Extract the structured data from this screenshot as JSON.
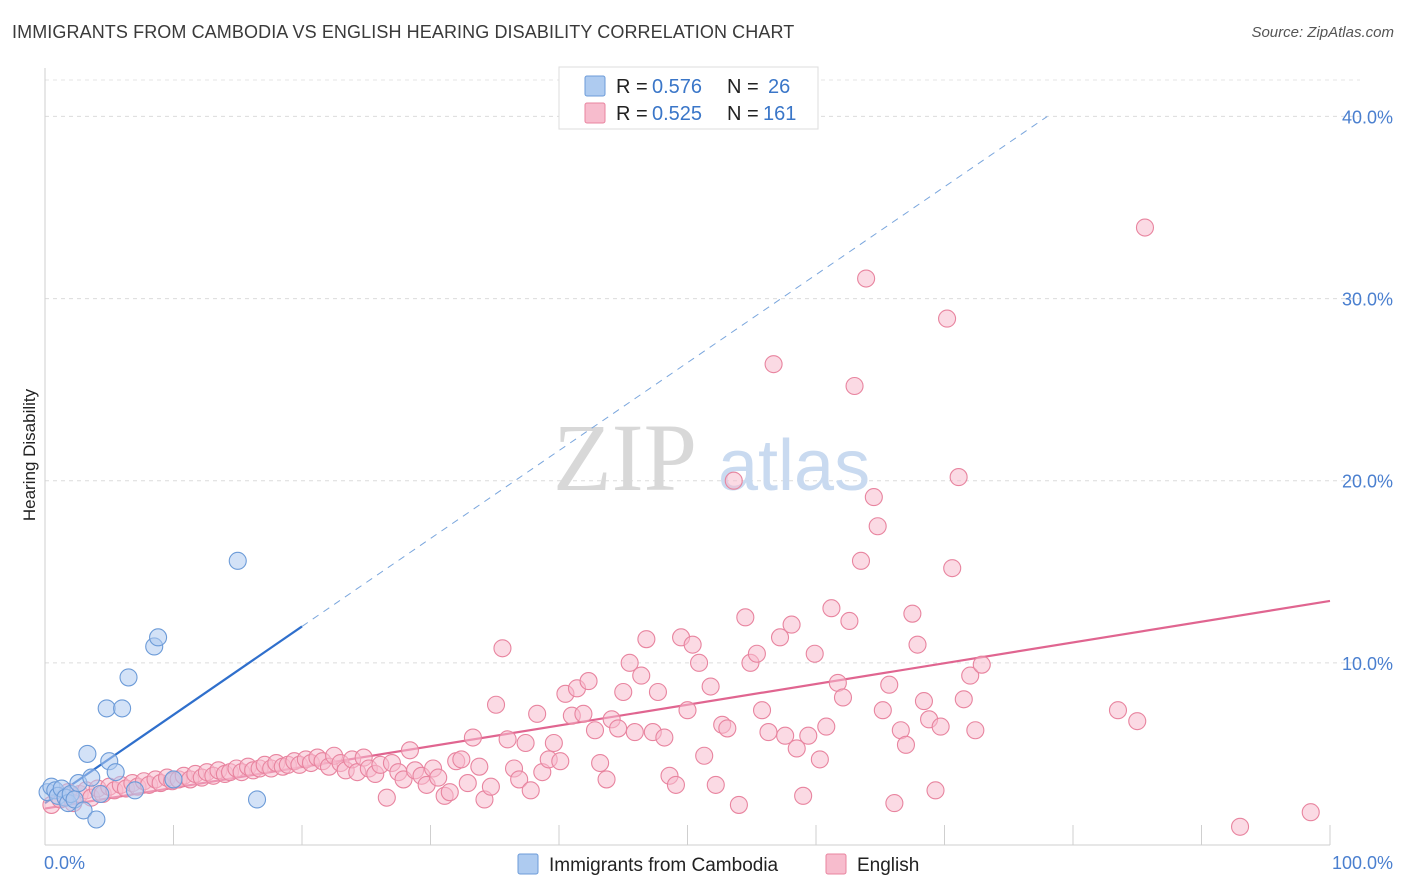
{
  "title": "IMMIGRANTS FROM CAMBODIA VS ENGLISH HEARING DISABILITY CORRELATION CHART",
  "source": "Source: ZipAtlas.com",
  "watermark": {
    "zip": "ZIP",
    "atlas": "atlas"
  },
  "legend": {
    "rows": [
      {
        "r_label": "R =",
        "r_value": "0.576",
        "n_label": "N =",
        "n_value": "26",
        "color": "#aecbf0"
      },
      {
        "r_label": "R =",
        "r_value": "0.525",
        "n_label": "N =",
        "n_value": "161",
        "color": "#f7bccd"
      }
    ]
  },
  "bottom_legend": [
    {
      "label": "Immigrants from Cambodia",
      "color": "#aecbf0"
    },
    {
      "label": "English",
      "color": "#f7bccd"
    }
  ],
  "chart_data": {
    "type": "scatter",
    "title": "IMMIGRANTS FROM CAMBODIA VS ENGLISH HEARING DISABILITY CORRELATION CHART",
    "xlabel": "",
    "ylabel": "Hearing Disability",
    "xlim": [
      0,
      100
    ],
    "ylim": [
      0,
      42
    ],
    "x_ticks": [
      "0.0%",
      "100.0%"
    ],
    "y_ticks": [
      {
        "value": 10,
        "label": "10.0%"
      },
      {
        "value": 20,
        "label": "20.0%"
      },
      {
        "value": 30,
        "label": "30.0%"
      },
      {
        "value": 40,
        "label": "40.0%"
      }
    ],
    "grid": true,
    "legend_position": "top-center",
    "series": [
      {
        "name": "Immigrants from Cambodia",
        "color": "#aecbf0",
        "stroke": "#6c9bd8",
        "trend": {
          "x0": 0,
          "y0": 2.3,
          "x1": 20,
          "y1": 12.0,
          "dashed_to_x": 78,
          "dashed_to_y": 40.0,
          "color": "#2f6fcc"
        },
        "points": [
          [
            0.2,
            2.9
          ],
          [
            0.5,
            3.2
          ],
          [
            0.8,
            3.0
          ],
          [
            1.0,
            2.7
          ],
          [
            1.3,
            3.1
          ],
          [
            1.6,
            2.6
          ],
          [
            1.8,
            2.3
          ],
          [
            2.0,
            2.8
          ],
          [
            2.3,
            2.5
          ],
          [
            2.6,
            3.4
          ],
          [
            3.0,
            1.9
          ],
          [
            3.3,
            5.0
          ],
          [
            3.6,
            3.7
          ],
          [
            4.0,
            1.4
          ],
          [
            4.3,
            2.8
          ],
          [
            4.8,
            7.5
          ],
          [
            5.0,
            4.6
          ],
          [
            5.5,
            4.0
          ],
          [
            6.0,
            7.5
          ],
          [
            6.5,
            9.2
          ],
          [
            7.0,
            3.0
          ],
          [
            8.5,
            10.9
          ],
          [
            8.8,
            11.4
          ],
          [
            10.0,
            3.6
          ],
          [
            15.0,
            15.6
          ],
          [
            16.5,
            2.5
          ]
        ]
      },
      {
        "name": "English",
        "color": "#f7bccd",
        "stroke": "#e8849f",
        "trend": {
          "x0": 0,
          "y0": 2.0,
          "x1": 100,
          "y1": 13.4,
          "color": "#e06590"
        },
        "points": [
          [
            0.5,
            2.2
          ],
          [
            1.2,
            2.5
          ],
          [
            1.8,
            2.9
          ],
          [
            2.2,
            2.3
          ],
          [
            2.7,
            2.8
          ],
          [
            3.2,
            3.0
          ],
          [
            3.6,
            2.6
          ],
          [
            4.1,
            3.1
          ],
          [
            4.5,
            2.8
          ],
          [
            5.0,
            3.2
          ],
          [
            5.4,
            3.0
          ],
          [
            5.9,
            3.3
          ],
          [
            6.3,
            3.1
          ],
          [
            6.8,
            3.4
          ],
          [
            7.2,
            3.2
          ],
          [
            7.7,
            3.5
          ],
          [
            8.1,
            3.3
          ],
          [
            8.6,
            3.6
          ],
          [
            9.0,
            3.4
          ],
          [
            9.5,
            3.7
          ],
          [
            9.9,
            3.5
          ],
          [
            10.4,
            3.6
          ],
          [
            10.8,
            3.8
          ],
          [
            11.3,
            3.6
          ],
          [
            11.7,
            3.9
          ],
          [
            12.2,
            3.7
          ],
          [
            12.6,
            4.0
          ],
          [
            13.1,
            3.8
          ],
          [
            13.5,
            4.1
          ],
          [
            14.0,
            3.9
          ],
          [
            14.4,
            4.0
          ],
          [
            14.9,
            4.2
          ],
          [
            15.3,
            4.0
          ],
          [
            15.8,
            4.3
          ],
          [
            16.2,
            4.1
          ],
          [
            16.7,
            4.2
          ],
          [
            17.1,
            4.4
          ],
          [
            17.6,
            4.2
          ],
          [
            18.0,
            4.5
          ],
          [
            18.5,
            4.3
          ],
          [
            18.9,
            4.4
          ],
          [
            19.4,
            4.6
          ],
          [
            19.8,
            4.4
          ],
          [
            20.3,
            4.7
          ],
          [
            20.7,
            4.5
          ],
          [
            21.2,
            4.8
          ],
          [
            21.6,
            4.6
          ],
          [
            22.1,
            4.3
          ],
          [
            22.5,
            4.9
          ],
          [
            23.0,
            4.5
          ],
          [
            23.4,
            4.1
          ],
          [
            23.9,
            4.7
          ],
          [
            24.3,
            4.0
          ],
          [
            24.8,
            4.8
          ],
          [
            25.2,
            4.2
          ],
          [
            25.7,
            3.9
          ],
          [
            26.1,
            4.4
          ],
          [
            26.6,
            2.6
          ],
          [
            27.0,
            4.5
          ],
          [
            27.5,
            4.0
          ],
          [
            27.9,
            3.6
          ],
          [
            28.4,
            5.2
          ],
          [
            28.8,
            4.1
          ],
          [
            29.3,
            3.8
          ],
          [
            29.7,
            3.3
          ],
          [
            30.2,
            4.2
          ],
          [
            30.6,
            3.7
          ],
          [
            31.1,
            2.7
          ],
          [
            31.5,
            2.9
          ],
          [
            32.0,
            4.6
          ],
          [
            32.4,
            4.7
          ],
          [
            32.9,
            3.4
          ],
          [
            33.3,
            5.9
          ],
          [
            33.8,
            4.3
          ],
          [
            34.2,
            2.5
          ],
          [
            34.7,
            3.2
          ],
          [
            35.1,
            7.7
          ],
          [
            35.6,
            10.8
          ],
          [
            36.0,
            5.8
          ],
          [
            36.5,
            4.2
          ],
          [
            36.9,
            3.6
          ],
          [
            37.4,
            5.6
          ],
          [
            37.8,
            3.0
          ],
          [
            38.3,
            7.2
          ],
          [
            38.7,
            4.0
          ],
          [
            39.2,
            4.7
          ],
          [
            39.6,
            5.6
          ],
          [
            40.1,
            4.6
          ],
          [
            40.5,
            8.3
          ],
          [
            41.0,
            7.1
          ],
          [
            41.4,
            8.6
          ],
          [
            41.9,
            7.2
          ],
          [
            42.3,
            9.0
          ],
          [
            42.8,
            6.3
          ],
          [
            43.2,
            4.5
          ],
          [
            43.7,
            3.6
          ],
          [
            44.1,
            6.9
          ],
          [
            44.6,
            6.4
          ],
          [
            45.0,
            8.4
          ],
          [
            45.5,
            10.0
          ],
          [
            45.9,
            6.2
          ],
          [
            46.4,
            9.3
          ],
          [
            46.8,
            11.3
          ],
          [
            47.3,
            6.2
          ],
          [
            47.7,
            8.4
          ],
          [
            48.2,
            5.9
          ],
          [
            48.6,
            3.8
          ],
          [
            49.1,
            3.3
          ],
          [
            49.5,
            11.4
          ],
          [
            50.0,
            7.4
          ],
          [
            50.4,
            11.0
          ],
          [
            50.9,
            10.0
          ],
          [
            51.3,
            4.9
          ],
          [
            51.8,
            8.7
          ],
          [
            52.2,
            3.3
          ],
          [
            52.7,
            6.6
          ],
          [
            53.1,
            6.4
          ],
          [
            53.6,
            20.0
          ],
          [
            54.0,
            2.2
          ],
          [
            54.5,
            12.5
          ],
          [
            54.9,
            10.0
          ],
          [
            55.4,
            10.5
          ],
          [
            55.8,
            7.4
          ],
          [
            56.3,
            6.2
          ],
          [
            56.7,
            26.4
          ],
          [
            57.2,
            11.4
          ],
          [
            57.6,
            6.0
          ],
          [
            58.1,
            12.1
          ],
          [
            58.5,
            5.3
          ],
          [
            59.0,
            2.7
          ],
          [
            59.4,
            6.0
          ],
          [
            59.9,
            10.5
          ],
          [
            60.3,
            4.7
          ],
          [
            60.8,
            6.5
          ],
          [
            61.2,
            13.0
          ],
          [
            61.7,
            8.9
          ],
          [
            62.1,
            8.1
          ],
          [
            62.6,
            12.3
          ],
          [
            63.0,
            25.2
          ],
          [
            63.5,
            15.6
          ],
          [
            63.9,
            31.1
          ],
          [
            64.5,
            19.1
          ],
          [
            64.8,
            17.5
          ],
          [
            65.2,
            7.4
          ],
          [
            65.7,
            8.8
          ],
          [
            66.1,
            2.3
          ],
          [
            66.6,
            6.3
          ],
          [
            67.0,
            5.5
          ],
          [
            67.5,
            12.7
          ],
          [
            67.9,
            11.0
          ],
          [
            68.4,
            7.9
          ],
          [
            68.8,
            6.9
          ],
          [
            69.3,
            3.0
          ],
          [
            69.7,
            6.5
          ],
          [
            70.2,
            28.9
          ],
          [
            70.6,
            15.2
          ],
          [
            71.1,
            20.2
          ],
          [
            71.5,
            8.0
          ],
          [
            72.0,
            9.3
          ],
          [
            72.4,
            6.3
          ],
          [
            72.9,
            9.9
          ],
          [
            83.5,
            7.4
          ],
          [
            85.0,
            6.8
          ],
          [
            85.6,
            33.9
          ],
          [
            93.0,
            1.0
          ],
          [
            98.5,
            1.8
          ]
        ]
      }
    ]
  }
}
